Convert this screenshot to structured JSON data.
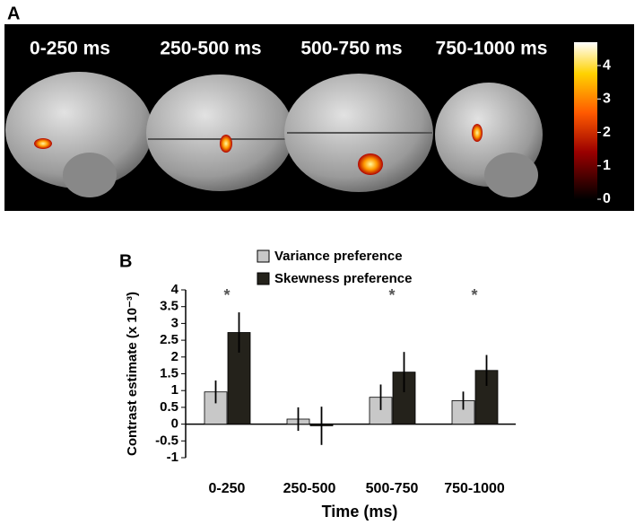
{
  "chart_data": [
    {
      "type": "colorbar",
      "panel_label": "A",
      "image_labels": [
        "0-250 ms",
        "250-500 ms",
        "500-750 ms",
        "750-1000 ms"
      ],
      "ylim": [
        0,
        4.7
      ],
      "yticks": [
        0,
        1,
        2,
        3,
        4
      ]
    },
    {
      "type": "bar",
      "panel_label": "B",
      "ylabel": "Contrast estimate (x 10⁻³)",
      "xlabel": "Time (ms)",
      "categories": [
        "0-250",
        "250-500",
        "500-750",
        "750-1000"
      ],
      "significance": [
        "*",
        null,
        "*",
        "*"
      ],
      "series": [
        {
          "name": "Variance preference",
          "color": "#c8c8c8",
          "values": [
            0.96,
            0.15,
            0.8,
            0.7
          ],
          "errors": [
            0.34,
            0.35,
            0.38,
            0.27
          ]
        },
        {
          "name": "Skewness preference",
          "color": "#24221b",
          "values": [
            2.73,
            -0.05,
            1.55,
            1.6
          ],
          "errors": [
            0.6,
            0.57,
            0.6,
            0.46
          ]
        }
      ],
      "ylim": [
        -1,
        4
      ],
      "yticks": [
        -1,
        -0.5,
        0,
        0.5,
        1,
        1.5,
        2,
        2.5,
        3,
        3.5,
        4
      ]
    }
  ]
}
